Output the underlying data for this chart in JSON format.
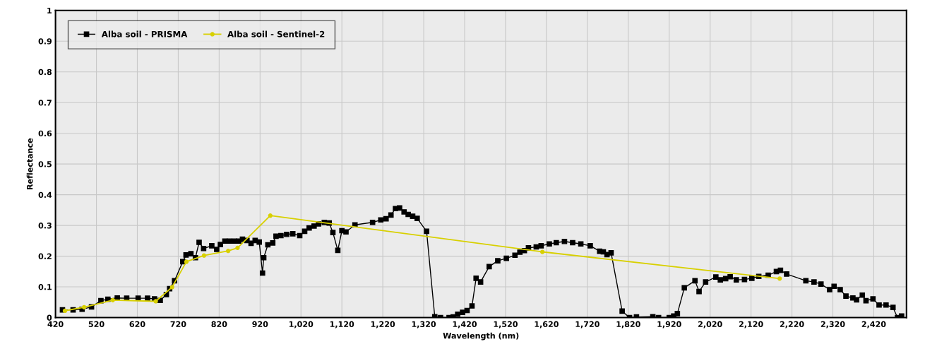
{
  "chart_data": {
    "type": "line",
    "xlabel": "Wavelength (nm)",
    "ylabel": "Reflectance",
    "xlim": [
      420,
      2500
    ],
    "ylim": [
      0,
      1
    ],
    "xticks": [
      420,
      520,
      620,
      720,
      820,
      920,
      {
        "value": 1020,
        "label": "1,020"
      },
      {
        "value": 1120,
        "label": "1,120"
      },
      {
        "value": 1220,
        "label": "1,220"
      },
      {
        "value": 1320,
        "label": "1,320"
      },
      {
        "value": 1420,
        "label": "1,420"
      },
      {
        "value": 1520,
        "label": "1,520"
      },
      {
        "value": 1620,
        "label": "1,620"
      },
      {
        "value": 1720,
        "label": "1,720"
      },
      {
        "value": 1820,
        "label": "1,820"
      },
      {
        "value": 1920,
        "label": "1,920"
      },
      {
        "value": 2020,
        "label": "2,020"
      },
      {
        "value": 2120,
        "label": "2,120"
      },
      {
        "value": 2220,
        "label": "2,220"
      },
      {
        "value": 2320,
        "label": "2,320"
      },
      {
        "value": 2420,
        "label": "2,420"
      }
    ],
    "yticks": [
      0,
      0.1,
      0.2,
      0.3,
      0.4,
      0.5,
      0.6,
      0.7,
      0.8,
      0.9,
      1
    ],
    "grid": true,
    "legend": "top left",
    "line_style": "solid",
    "series": [
      {
        "name": "Alba soil - PRISMA",
        "color": "#000000",
        "marker": "square",
        "x": [
          437,
          463,
          485,
          508,
          531,
          548,
          571,
          594,
          622,
          645,
          662,
          676,
          691,
          699,
          711,
          731,
          739,
          751,
          762,
          771,
          782,
          802,
          814,
          823,
          834,
          845,
          857,
          868,
          877,
          888,
          898,
          908,
          918,
          926,
          929,
          939,
          951,
          959,
          971,
          985,
          1000,
          1017,
          1029,
          1040,
          1052,
          1063,
          1077,
          1089,
          1098,
          1110,
          1120,
          1130,
          1152,
          1195,
          1215,
          1228,
          1240,
          1251,
          1261,
          1272,
          1282,
          1293,
          1304,
          1327,
          1347,
          1361,
          1382,
          1392,
          1403,
          1415,
          1426,
          1438,
          1448,
          1459,
          1480,
          1501,
          1522,
          1543,
          1555,
          1566,
          1576,
          1595,
          1607,
          1627,
          1644,
          1664,
          1684,
          1704,
          1727,
          1750,
          1759,
          1768,
          1778,
          1805,
          1823,
          1840,
          1880,
          1894,
          1920,
          1931,
          1940,
          1957,
          1983,
          1993,
          2009,
          2034,
          2045,
          2058,
          2069,
          2084,
          2104,
          2122,
          2139,
          2162,
          2182,
          2192,
          2207,
          2254,
          2274,
          2291,
          2312,
          2323,
          2338,
          2352,
          2369,
          2378,
          2392,
          2401,
          2418,
          2433,
          2450,
          2467,
          2478,
          2488
        ],
        "values": [
          0.025,
          0.025,
          0.027,
          0.035,
          0.055,
          0.06,
          0.064,
          0.063,
          0.063,
          0.063,
          0.061,
          0.056,
          0.075,
          0.094,
          0.12,
          0.182,
          0.204,
          0.208,
          0.195,
          0.245,
          0.225,
          0.234,
          0.222,
          0.238,
          0.249,
          0.249,
          0.249,
          0.249,
          0.255,
          0.251,
          0.242,
          0.251,
          0.246,
          0.145,
          0.195,
          0.237,
          0.243,
          0.265,
          0.267,
          0.271,
          0.273,
          0.267,
          0.281,
          0.292,
          0.298,
          0.305,
          0.31,
          0.308,
          0.277,
          0.219,
          0.283,
          0.279,
          0.302,
          0.31,
          0.318,
          0.322,
          0.334,
          0.355,
          0.357,
          0.344,
          0.336,
          0.33,
          0.323,
          0.281,
          0.003,
          0.0,
          0.0,
          0.002,
          0.011,
          0.017,
          0.023,
          0.038,
          0.128,
          0.116,
          0.166,
          0.185,
          0.193,
          0.203,
          0.213,
          0.218,
          0.227,
          0.23,
          0.234,
          0.24,
          0.244,
          0.248,
          0.244,
          0.24,
          0.234,
          0.216,
          0.214,
          0.205,
          0.211,
          0.021,
          0.0,
          0.002,
          0.003,
          0.0,
          0.0,
          0.005,
          0.013,
          0.097,
          0.12,
          0.085,
          0.116,
          0.132,
          0.123,
          0.127,
          0.133,
          0.123,
          0.124,
          0.128,
          0.134,
          0.138,
          0.15,
          0.154,
          0.142,
          0.12,
          0.116,
          0.109,
          0.091,
          0.102,
          0.091,
          0.07,
          0.064,
          0.058,
          0.073,
          0.055,
          0.061,
          0.041,
          0.041,
          0.033,
          0.0,
          0.005
        ]
      },
      {
        "name": "Alba soil - Sentinel-2",
        "color": "#d8d000",
        "marker": "circle",
        "x": [
          443,
          490,
          560,
          665,
          705,
          740,
          783,
          842,
          865,
          945,
          1610,
          2190
        ],
        "values": [
          0.022,
          0.034,
          0.057,
          0.053,
          0.099,
          0.182,
          0.202,
          0.217,
          0.227,
          0.332,
          0.214,
          0.127
        ]
      }
    ]
  }
}
